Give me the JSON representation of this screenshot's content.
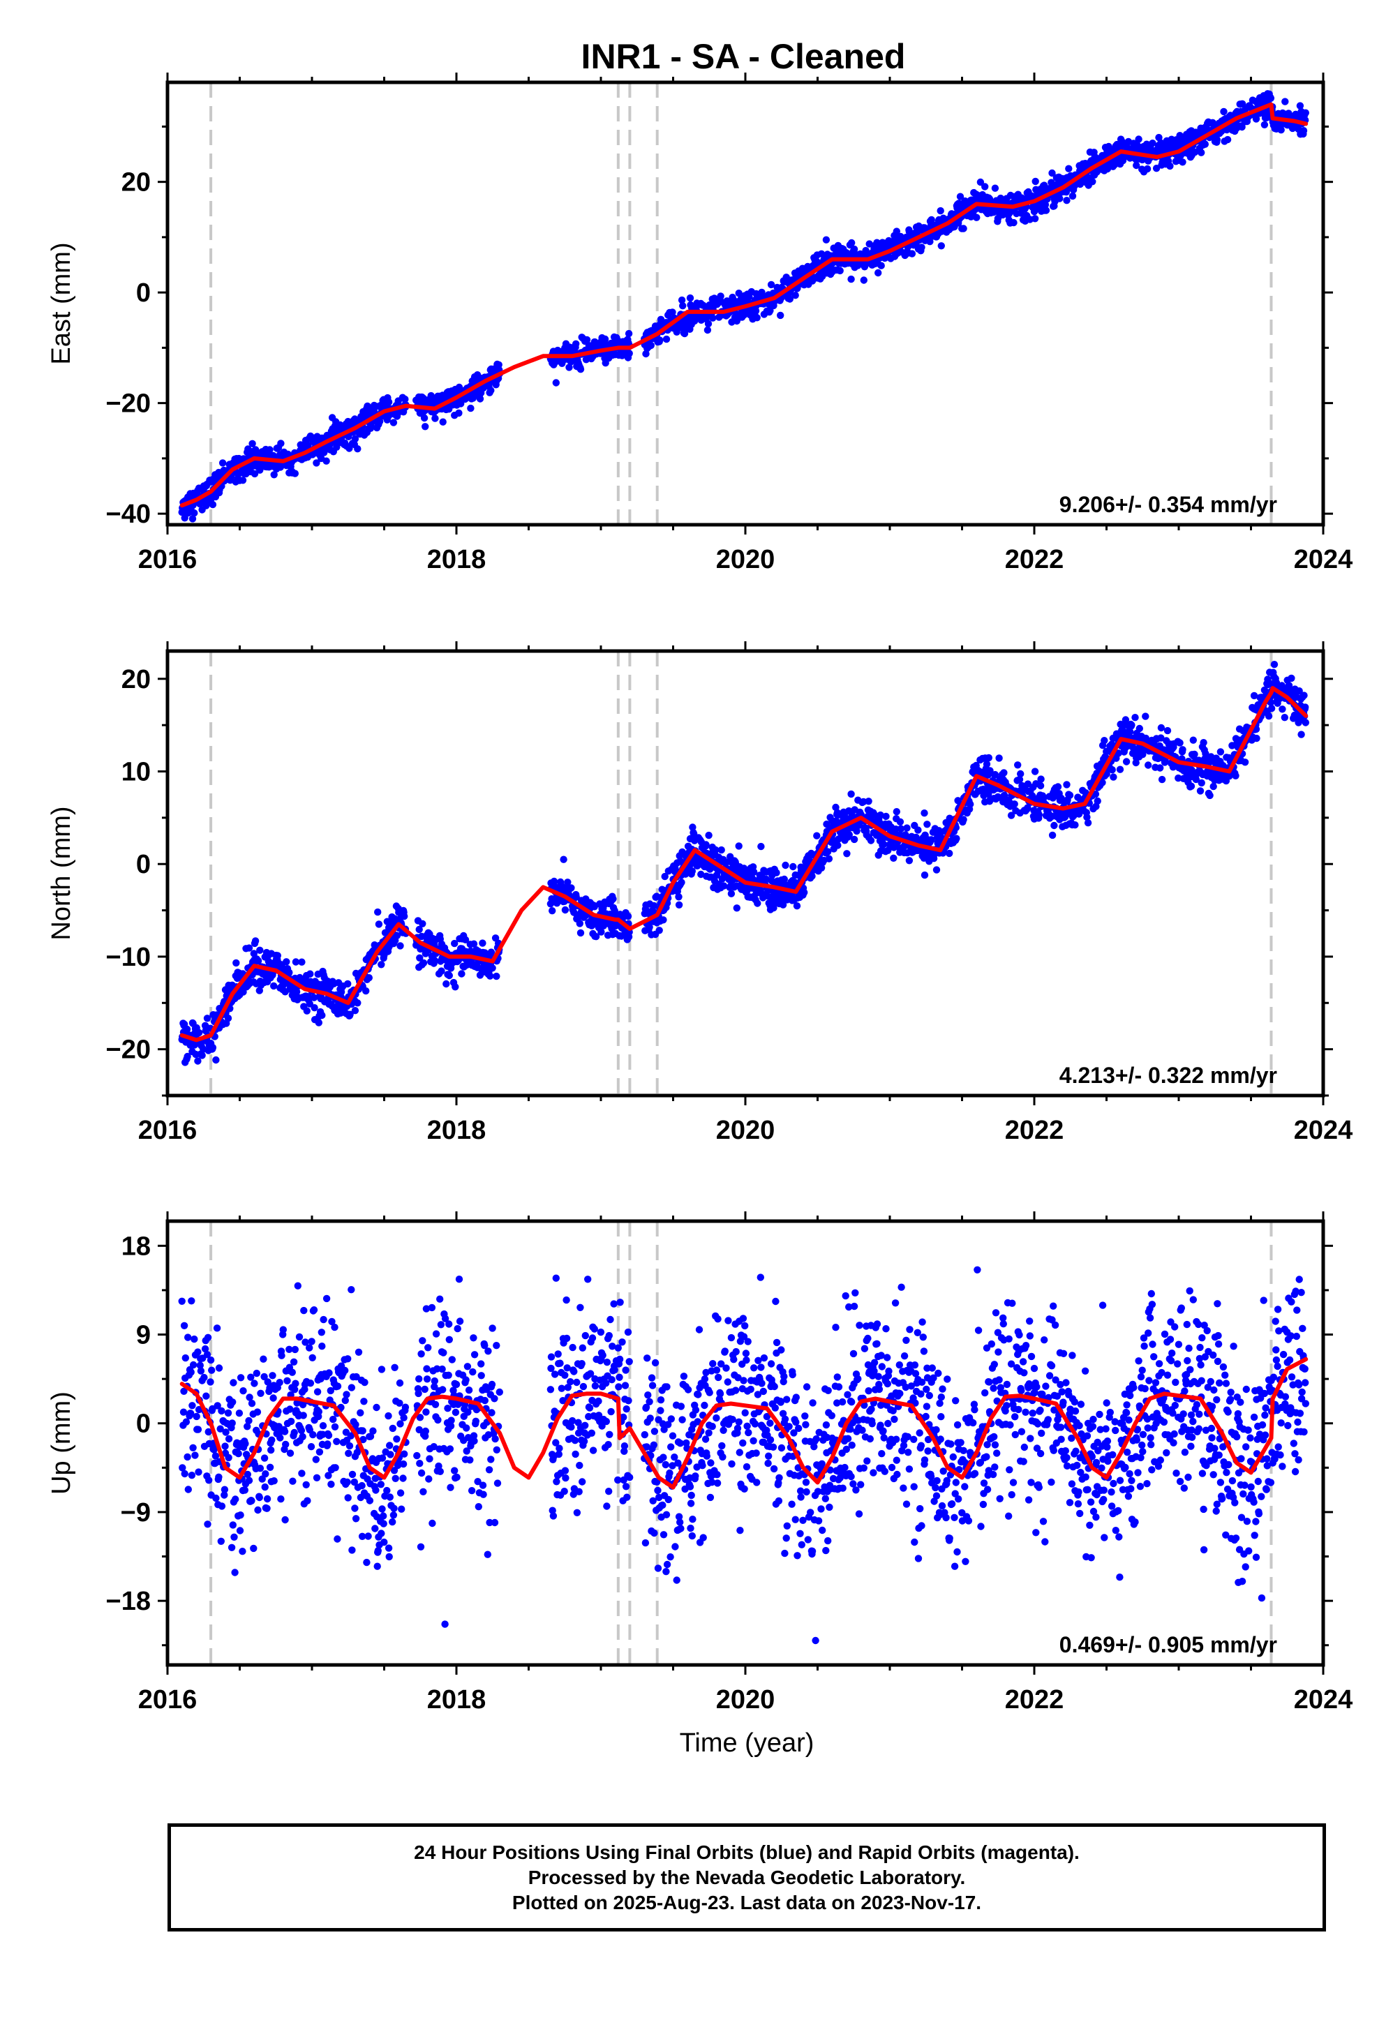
{
  "page": {
    "title": "INR1  - SA - Cleaned",
    "xlabel": "Time (year)"
  },
  "colors": {
    "observations": "#0000ff",
    "model": "#ff0000",
    "offsets": "#c8c8c8",
    "frame": "#000000"
  },
  "footer": {
    "line1": "24 Hour Positions Using Final Orbits (blue) and Rapid Orbits (magenta).",
    "line2": "Processed by the Nevada Geodetic Laboratory.",
    "line3": "Plotted on 2025-Aug-23. Last data on 2023-Nov-17."
  },
  "chart_data": [
    {
      "type": "scatter",
      "component": "East",
      "ylabel": "East (mm)",
      "xlim": [
        2016,
        2024
      ],
      "ylim": [
        -42,
        38
      ],
      "xticks": [
        2016,
        2018,
        2020,
        2022,
        2024
      ],
      "yticks": [
        -40,
        -20,
        0,
        20
      ],
      "rate_label": "9.206+/- 0.354 mm/yr",
      "rate": 9.206,
      "offsets": [
        2016.3,
        2019.12,
        2019.2,
        2019.39,
        2023.64
      ],
      "gaps": [
        [
          2017.65,
          2017.72
        ],
        [
          2018.3,
          2018.65
        ],
        [
          2019.2,
          2019.3
        ]
      ],
      "model_x": [
        2016.1,
        2016.2,
        2016.3,
        2016.45,
        2016.6,
        2016.8,
        2016.95,
        2017.1,
        2017.3,
        2017.5,
        2017.65,
        2017.85,
        2018.0,
        2018.2,
        2018.4,
        2018.6,
        2018.8,
        2019.0,
        2019.12,
        2019.2,
        2019.39,
        2019.6,
        2019.85,
        2020.0,
        2020.2,
        2020.4,
        2020.6,
        2020.85,
        2021.0,
        2021.2,
        2021.4,
        2021.6,
        2021.85,
        2022.0,
        2022.2,
        2022.4,
        2022.6,
        2022.85,
        2023.0,
        2023.2,
        2023.4,
        2023.64,
        2023.65,
        2023.8,
        2023.88
      ],
      "model_y": [
        -38.5,
        -37.5,
        -36,
        -32,
        -30,
        -30.5,
        -29,
        -27,
        -24.5,
        -21.5,
        -20.5,
        -21,
        -19,
        -16,
        -13.5,
        -11.5,
        -11.5,
        -10.5,
        -10,
        -10,
        -7.5,
        -3.5,
        -3.5,
        -2.5,
        -1.0,
        2.5,
        6.0,
        6.0,
        7.5,
        10,
        12.5,
        16,
        15.5,
        16.5,
        19,
        22.5,
        25.5,
        24.5,
        25.5,
        28.5,
        31.5,
        34,
        31.5,
        31,
        30.5
      ]
    },
    {
      "type": "scatter",
      "component": "North",
      "ylabel": "North (mm)",
      "xlim": [
        2016,
        2024
      ],
      "ylim": [
        -25,
        23
      ],
      "xticks": [
        2016,
        2018,
        2020,
        2022,
        2024
      ],
      "yticks": [
        -20,
        -10,
        0,
        10,
        20
      ],
      "rate_label": "4.213+/- 0.322 mm/yr",
      "rate": 4.213,
      "offsets": [
        2016.3,
        2019.12,
        2019.2,
        2019.39,
        2023.64
      ],
      "gaps": [
        [
          2017.65,
          2017.72
        ],
        [
          2018.3,
          2018.65
        ],
        [
          2019.2,
          2019.3
        ]
      ],
      "model_x": [
        2016.1,
        2016.2,
        2016.3,
        2016.45,
        2016.6,
        2016.75,
        2016.95,
        2017.1,
        2017.25,
        2017.45,
        2017.6,
        2017.75,
        2017.95,
        2018.1,
        2018.25,
        2018.45,
        2018.6,
        2018.75,
        2018.95,
        2019.1,
        2019.12,
        2019.2,
        2019.39,
        2019.5,
        2019.65,
        2019.8,
        2020.0,
        2020.2,
        2020.35,
        2020.6,
        2020.8,
        2021.0,
        2021.2,
        2021.35,
        2021.6,
        2021.75,
        2022.0,
        2022.2,
        2022.35,
        2022.6,
        2022.75,
        2023.0,
        2023.2,
        2023.35,
        2023.6,
        2023.64,
        2023.65,
        2023.75,
        2023.88
      ],
      "model_y": [
        -18.5,
        -19,
        -18.5,
        -14,
        -11,
        -11.5,
        -13.5,
        -14,
        -15,
        -9.5,
        -6.5,
        -8.5,
        -10,
        -10,
        -10.5,
        -5,
        -2.5,
        -3.5,
        -5.5,
        -6,
        -6,
        -7,
        -5.5,
        -2,
        1.5,
        0,
        -2,
        -2.5,
        -3,
        3.5,
        5,
        3,
        2,
        1.5,
        9.5,
        8.5,
        6.5,
        6,
        6.5,
        13.5,
        13,
        11,
        10.5,
        10,
        17.5,
        18.5,
        19,
        18,
        16
      ]
    },
    {
      "type": "scatter",
      "component": "Up",
      "ylabel": "Up (mm)",
      "xlim": [
        2016,
        2024
      ],
      "ylim": [
        -24.5,
        20.5
      ],
      "xticks": [
        2016,
        2018,
        2020,
        2022,
        2024
      ],
      "yticks": [
        -18,
        -9,
        0,
        9,
        18
      ],
      "rate_label": "0.469+/- 0.905 mm/yr",
      "rate": 0.469,
      "offsets": [
        2016.3,
        2019.12,
        2019.2,
        2019.39,
        2023.64
      ],
      "gaps": [
        [
          2017.65,
          2017.72
        ],
        [
          2018.3,
          2018.65
        ],
        [
          2019.2,
          2019.3
        ]
      ],
      "model_x": [
        2016.1,
        2016.2,
        2016.3,
        2016.4,
        2016.5,
        2016.6,
        2016.7,
        2016.8,
        2016.9,
        2017.0,
        2017.15,
        2017.3,
        2017.4,
        2017.5,
        2017.6,
        2017.7,
        2017.8,
        2017.9,
        2018.0,
        2018.15,
        2018.3,
        2018.4,
        2018.5,
        2018.6,
        2018.7,
        2018.8,
        2018.9,
        2019.0,
        2019.12,
        2019.13,
        2019.2,
        2019.3,
        2019.4,
        2019.5,
        2019.6,
        2019.7,
        2019.8,
        2019.9,
        2020.0,
        2020.15,
        2020.3,
        2020.4,
        2020.5,
        2020.6,
        2020.7,
        2020.8,
        2020.9,
        2021.0,
        2021.15,
        2021.3,
        2021.4,
        2021.5,
        2021.6,
        2021.7,
        2021.8,
        2021.9,
        2022.0,
        2022.15,
        2022.3,
        2022.4,
        2022.5,
        2022.6,
        2022.7,
        2022.8,
        2022.9,
        2023.0,
        2023.15,
        2023.3,
        2023.4,
        2023.5,
        2023.6,
        2023.64,
        2023.65,
        2023.75,
        2023.88
      ],
      "model_y": [
        4,
        3,
        0,
        -4.5,
        -5.5,
        -3,
        0.5,
        2.5,
        2.5,
        2.2,
        1.8,
        -1,
        -4.5,
        -5.5,
        -3,
        0.5,
        2.5,
        2.7,
        2.5,
        2,
        -1,
        -4.5,
        -5.5,
        -3,
        0.5,
        2.8,
        3,
        3,
        2.5,
        -1.5,
        -0.5,
        -3,
        -5.5,
        -6.5,
        -3.5,
        0,
        1.8,
        2,
        1.8,
        1.5,
        -1.5,
        -4.5,
        -6,
        -3.5,
        0,
        2.2,
        2.5,
        2.2,
        1.8,
        -1.5,
        -4.5,
        -5.5,
        -3,
        0.5,
        2.7,
        2.8,
        2.5,
        2,
        -1.5,
        -4.5,
        -5.5,
        -3,
        0,
        2.5,
        3,
        2.8,
        2.5,
        -1,
        -4,
        -5,
        -2.5,
        -1.5,
        2.5,
        5.5,
        6.5
      ]
    }
  ]
}
